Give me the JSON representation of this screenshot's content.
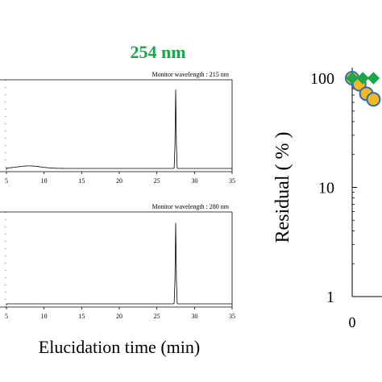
{
  "figure": {
    "wavelength_heading": "254 nm",
    "heading_color": "#1aa64a"
  },
  "chart_data": [
    {
      "type": "line",
      "panel": "chromatogram-top",
      "annotation": "Monitor wavelength : 215 nm",
      "xlabel": "Elucidation time (min)",
      "xticks": [
        "5",
        "10",
        "15",
        "20",
        "25",
        "30",
        "35"
      ],
      "xlim": [
        5,
        35
      ],
      "baseline_color": "#000000",
      "peaks": [
        {
          "x": 27.5,
          "relative_height": 0.94
        },
        {
          "x": 8.0,
          "relative_height": 0.03
        }
      ]
    },
    {
      "type": "line",
      "panel": "chromatogram-bottom",
      "annotation": "Monitor wavelength : 280 nm",
      "xticks": [
        "5",
        "10",
        "15",
        "20",
        "25",
        "30",
        "35"
      ],
      "xlim": [
        5,
        35
      ],
      "peaks": [
        {
          "x": 27.5,
          "relative_height": 0.93
        }
      ]
    },
    {
      "type": "scatter",
      "panel": "residual",
      "ylabel": "Residual ( % )",
      "yscale": "log",
      "ylim": [
        1,
        100
      ],
      "yticks": [
        "1",
        "10",
        "100"
      ],
      "xticks": [
        "0"
      ],
      "series": [
        {
          "marker": "circle",
          "color": "#f5b820",
          "edge": "#2f6db5",
          "points": [
            {
              "x": 0,
              "y": 100
            },
            {
              "x": 0.4,
              "y": 88
            },
            {
              "x": 0.8,
              "y": 72
            },
            {
              "x": 1.2,
              "y": 64
            }
          ]
        },
        {
          "marker": "diamond",
          "color": "#1aa64a",
          "edge": "#1aa64a",
          "points": [
            {
              "x": 0,
              "y": 100
            },
            {
              "x": 0.6,
              "y": 100
            },
            {
              "x": 1.2,
              "y": 100
            }
          ]
        }
      ]
    }
  ]
}
